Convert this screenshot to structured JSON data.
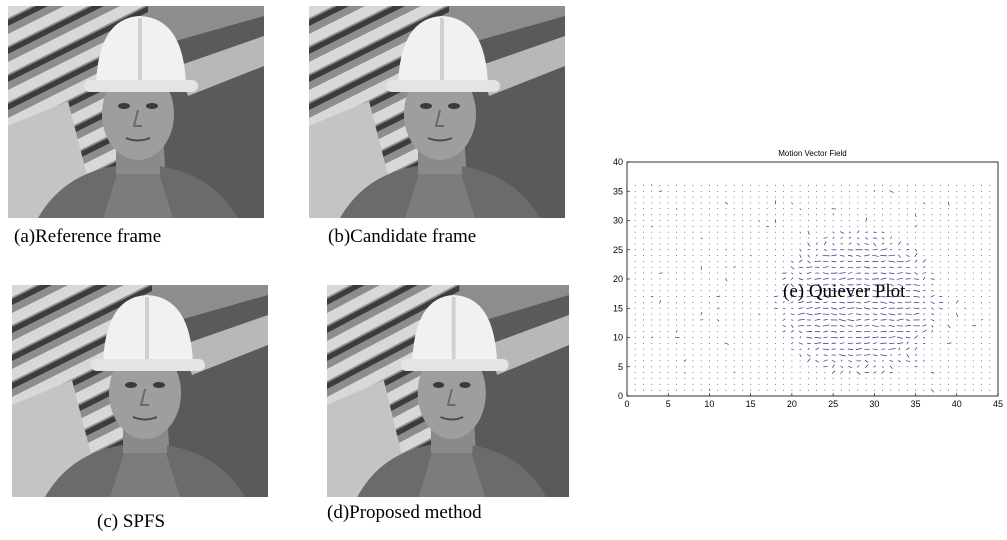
{
  "figures": [
    {
      "id": "a",
      "caption": "(a)Reference frame",
      "variant": 0
    },
    {
      "id": "b",
      "caption": "(b)Candidate frame",
      "variant": 1
    },
    {
      "id": "c",
      "caption": "(c) SPFS",
      "variant": 2
    },
    {
      "id": "d",
      "caption": "(d)Proposed method",
      "variant": 3
    }
  ],
  "quiver_caption": "(e) Quiever Plot",
  "colors": {
    "arrow": "#2a2a8a",
    "axis": "#000000"
  },
  "chart_data": {
    "type": "scatter",
    "title": "Motion Vector Field",
    "xlabel": "",
    "ylabel": "",
    "xlim": [
      0,
      45
    ],
    "ylim": [
      0,
      40
    ],
    "xticks": [
      0,
      5,
      10,
      15,
      20,
      25,
      30,
      35,
      40,
      45
    ],
    "yticks": [
      0,
      5,
      10,
      15,
      20,
      25,
      30,
      35,
      40
    ],
    "grid_x": [
      1,
      44
    ],
    "grid_y": [
      1,
      36
    ],
    "active_region": {
      "center": [
        28,
        16
      ],
      "radius_x": 8,
      "radius_y": 10
    },
    "note_flow": "vectors mostly horizontal inside the active region, dots elsewhere"
  }
}
